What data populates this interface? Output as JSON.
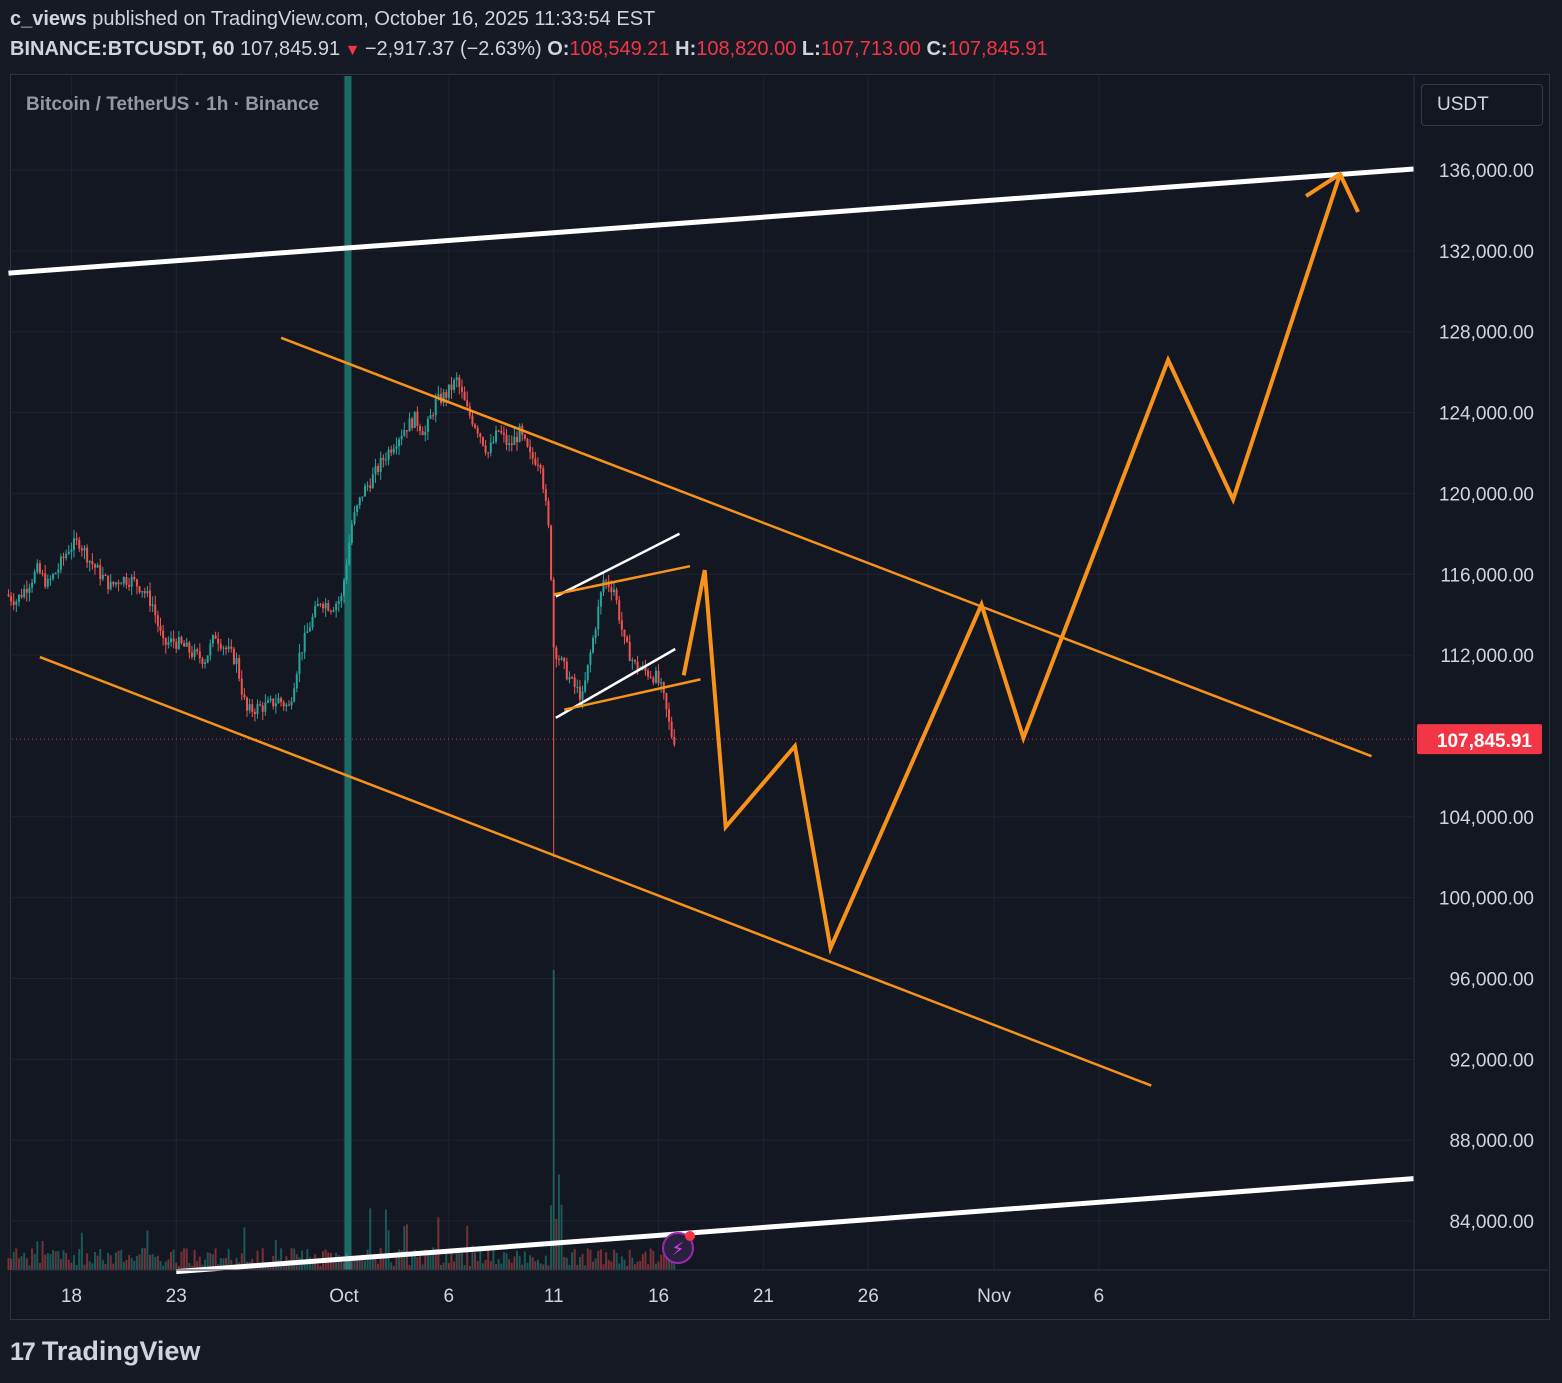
{
  "header": {
    "author": "c_views",
    "published": "published on TradingView.com, October 16, 2025 11:33:54 EST",
    "symbol": "BINANCE:BTCUSDT, 60",
    "last": "107,845.91",
    "change": "−2,917.37 (−2.63%)",
    "open_label": "O:",
    "open": "108,549.21",
    "high_label": "H:",
    "high": "108,820.00",
    "low_label": "L:",
    "low": "107,713.00",
    "close_label": "C:",
    "close": "107,845.91"
  },
  "legend": "Bitcoin / TetherUS · 1h · Binance",
  "currency": "USDT",
  "brand": "TradingView",
  "colors": {
    "background": "#131722",
    "grid": "#1f2330",
    "up": "#26a69a",
    "down": "#ef5350",
    "projection": "#f7931a",
    "channel": "#ffffff",
    "marker": "#1a6b66",
    "price_tag": "#f23645"
  },
  "chart_data": {
    "type": "line",
    "title": "Bitcoin / TetherUS · 1h · Binance",
    "ylabel": "USDT",
    "xlabel": "",
    "ylim": [
      81500,
      140000
    ],
    "y_ticks": [
      "136,000.00",
      "132,000.00",
      "128,000.00",
      "124,000.00",
      "120,000.00",
      "116,000.00",
      "112,000.00",
      "104,000.00",
      "100,000.00",
      "96,000.00",
      "92,000.00",
      "88,000.00",
      "84,000.00"
    ],
    "x_ticks": [
      {
        "label": "18",
        "day": -13
      },
      {
        "label": "23",
        "day": -8
      },
      {
        "label": "Oct",
        "day": 0
      },
      {
        "label": "6",
        "day": 5
      },
      {
        "label": "11",
        "day": 10
      },
      {
        "label": "16",
        "day": 15
      },
      {
        "label": "21",
        "day": 20
      },
      {
        "label": "26",
        "day": 25
      },
      {
        "label": "Nov",
        "day": 31
      },
      {
        "label": "6",
        "day": 36
      }
    ],
    "last_price": 107845.91,
    "last_price_label": "107,845.91",
    "price_series": {
      "name": "BTCUSDT 1h",
      "points": [
        [
          -16,
          115000
        ],
        [
          -15.5,
          114700
        ],
        [
          -15,
          115400
        ],
        [
          -14.5,
          116200
        ],
        [
          -14,
          115500
        ],
        [
          -13.5,
          116300
        ],
        [
          -13,
          117300
        ],
        [
          -12.5,
          117600
        ],
        [
          -12,
          116700
        ],
        [
          -11.5,
          116000
        ],
        [
          -11,
          115400
        ],
        [
          -10.5,
          115800
        ],
        [
          -10,
          115700
        ],
        [
          -9.5,
          115300
        ],
        [
          -9,
          114500
        ],
        [
          -8.5,
          112500
        ],
        [
          -8,
          112700
        ],
        [
          -7.5,
          112400
        ],
        [
          -7,
          112000
        ],
        [
          -6.5,
          111800
        ],
        [
          -6,
          113000
        ],
        [
          -5.5,
          112300
        ],
        [
          -5,
          111700
        ],
        [
          -4.7,
          110000
        ],
        [
          -4.5,
          109200
        ],
        [
          -4,
          109400
        ],
        [
          -3.5,
          109500
        ],
        [
          -3,
          109800
        ],
        [
          -2.5,
          109400
        ],
        [
          -2,
          112000
        ],
        [
          -1.5,
          113500
        ],
        [
          -1,
          114700
        ],
        [
          -0.5,
          114400
        ],
        [
          0,
          114800
        ],
        [
          0.5,
          118500
        ],
        [
          1,
          120000
        ],
        [
          1.5,
          120800
        ],
        [
          2,
          121700
        ],
        [
          2.5,
          122500
        ],
        [
          3,
          123200
        ],
        [
          3.5,
          123700
        ],
        [
          4,
          123000
        ],
        [
          4.5,
          124500
        ],
        [
          5,
          124900
        ],
        [
          5.5,
          125600
        ],
        [
          6,
          124100
        ],
        [
          6.5,
          123200
        ],
        [
          7,
          122000
        ],
        [
          7.5,
          123100
        ],
        [
          8,
          122300
        ],
        [
          8.5,
          123000
        ],
        [
          9,
          121800
        ],
        [
          9.5,
          121600
        ],
        [
          9.9,
          118000
        ],
        [
          10.05,
          115000
        ],
        [
          10.1,
          112500
        ],
        [
          10.5,
          111600
        ],
        [
          11,
          110600
        ],
        [
          11.5,
          109900
        ],
        [
          12,
          112800
        ],
        [
          12.5,
          115700
        ],
        [
          13,
          115300
        ],
        [
          13.5,
          112600
        ],
        [
          14,
          111500
        ],
        [
          14.5,
          111200
        ],
        [
          15,
          110900
        ],
        [
          15.3,
          110200
        ],
        [
          15.6,
          108700
        ],
        [
          15.8,
          107846
        ]
      ]
    },
    "volume": {
      "name": "Volume",
      "spike_day": 10.05,
      "ylim": [
        0,
        1
      ]
    },
    "drawings": [
      {
        "name": "upper-channel-line",
        "color": "white",
        "x": [
          -16,
          51
        ],
        "y": [
          130900,
          136050
        ]
      },
      {
        "name": "lower-channel-line",
        "color": "white",
        "x": [
          -8,
          51
        ],
        "y": [
          81500,
          86100
        ]
      },
      {
        "name": "descending-channel-top",
        "color": "orange",
        "x": [
          -3,
          49
        ],
        "y": [
          127700,
          107000
        ]
      },
      {
        "name": "descending-channel-bottom",
        "color": "orange",
        "x": [
          -14.5,
          38.5
        ],
        "y": [
          111900,
          90700
        ]
      },
      {
        "name": "flag-upper-white",
        "color": "white",
        "x": [
          10.1,
          16
        ],
        "y": [
          114900,
          118000
        ]
      },
      {
        "name": "flag-lower-white",
        "color": "white",
        "x": [
          10.1,
          15.8
        ],
        "y": [
          108900,
          112300
        ]
      },
      {
        "name": "flag-upper-orange",
        "color": "orange",
        "x": [
          10,
          16.5
        ],
        "y": [
          115000,
          116400
        ]
      },
      {
        "name": "flag-lower-orange",
        "color": "orange",
        "x": [
          10.5,
          17
        ],
        "y": [
          109300,
          110800
        ]
      },
      {
        "name": "projection-path",
        "color": "orange",
        "x": [
          16.2,
          17.2,
          18.2,
          21.5,
          23.2,
          30.4,
          32.4,
          39.3,
          42.4,
          47.5
        ],
        "y": [
          111000,
          116200,
          103500,
          107500,
          97500,
          114500,
          107900,
          126600,
          119700,
          135800
        ]
      }
    ]
  }
}
